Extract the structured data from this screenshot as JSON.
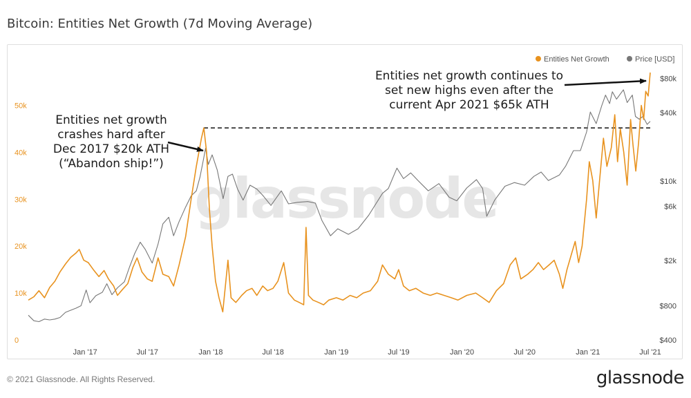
{
  "page": {
    "title": "Bitcoin: Entities Net Growth (7d Moving Average)",
    "copyright": "© 2021 Glassnode. All Rights Reserved.",
    "logo": "glassnode",
    "watermark": "glassnode"
  },
  "chart_data": {
    "type": "line",
    "title": "Bitcoin: Entities Net Growth (7d Moving Average)",
    "x_range": [
      "2016-07-20",
      "2021-07-05"
    ],
    "x_ticks": [
      {
        "date": "2017-01-01",
        "label": "Jan '17"
      },
      {
        "date": "2017-07-01",
        "label": "Jul '17"
      },
      {
        "date": "2018-01-01",
        "label": "Jan '18"
      },
      {
        "date": "2018-07-01",
        "label": "Jul '18"
      },
      {
        "date": "2019-01-01",
        "label": "Jan '19"
      },
      {
        "date": "2019-07-01",
        "label": "Jul '19"
      },
      {
        "date": "2020-01-01",
        "label": "Jan '20"
      },
      {
        "date": "2020-07-01",
        "label": "Jul '20"
      },
      {
        "date": "2021-01-01",
        "label": "Jan '21"
      },
      {
        "date": "2021-07-01",
        "label": "Jul '21"
      }
    ],
    "y_left": {
      "ylim": [
        0,
        57000
      ],
      "ticks": [
        0,
        10000,
        20000,
        30000,
        40000,
        50000
      ],
      "tick_labels": [
        "0",
        "10k",
        "20k",
        "30k",
        "40k",
        "50k"
      ],
      "color": "#e8921e"
    },
    "y_right": {
      "scale": "log",
      "ylim": [
        400,
        90000
      ],
      "ticks": [
        400,
        800,
        2000,
        6000,
        10000,
        40000,
        80000
      ],
      "tick_labels": [
        "$400",
        "$800",
        "$2k",
        "$6k",
        "$10k",
        "$40k",
        "$80k"
      ]
    },
    "legend": {
      "placement": "top-right"
    },
    "grid": false,
    "series": [
      {
        "name": "Entities Net Growth",
        "axis": "left",
        "color": "#e8921e",
        "points": [
          [
            "2016-07-20",
            8500
          ],
          [
            "2016-08-05",
            9200
          ],
          [
            "2016-08-20",
            10500
          ],
          [
            "2016-09-05",
            9000
          ],
          [
            "2016-09-20",
            11200
          ],
          [
            "2016-10-05",
            12500
          ],
          [
            "2016-10-20",
            14500
          ],
          [
            "2016-11-05",
            16200
          ],
          [
            "2016-11-20",
            17600
          ],
          [
            "2016-12-05",
            18500
          ],
          [
            "2016-12-15",
            19300
          ],
          [
            "2016-12-28",
            17000
          ],
          [
            "2017-01-10",
            16500
          ],
          [
            "2017-01-25",
            15000
          ],
          [
            "2017-02-10",
            13500
          ],
          [
            "2017-02-25",
            14800
          ],
          [
            "2017-03-10",
            13000
          ],
          [
            "2017-03-25",
            11500
          ],
          [
            "2017-04-05",
            9500
          ],
          [
            "2017-04-20",
            10800
          ],
          [
            "2017-05-05",
            12000
          ],
          [
            "2017-05-20",
            15500
          ],
          [
            "2017-06-01",
            17500
          ],
          [
            "2017-06-15",
            14500
          ],
          [
            "2017-07-01",
            13000
          ],
          [
            "2017-07-15",
            12500
          ],
          [
            "2017-08-01",
            17500
          ],
          [
            "2017-08-15",
            14000
          ],
          [
            "2017-09-01",
            13500
          ],
          [
            "2017-09-15",
            11500
          ],
          [
            "2017-10-01",
            16000
          ],
          [
            "2017-10-20",
            22000
          ],
          [
            "2017-11-05",
            30000
          ],
          [
            "2017-11-20",
            37000
          ],
          [
            "2017-12-05",
            43000
          ],
          [
            "2017-12-12",
            45200
          ],
          [
            "2017-12-20",
            40000
          ],
          [
            "2017-12-28",
            28000
          ],
          [
            "2018-01-05",
            20000
          ],
          [
            "2018-01-15",
            12500
          ],
          [
            "2018-01-25",
            9000
          ],
          [
            "2018-02-05",
            6000
          ],
          [
            "2018-02-20",
            17000
          ],
          [
            "2018-03-01",
            9000
          ],
          [
            "2018-03-15",
            8000
          ],
          [
            "2018-04-01",
            9500
          ],
          [
            "2018-04-15",
            10500
          ],
          [
            "2018-05-01",
            11000
          ],
          [
            "2018-05-15",
            9500
          ],
          [
            "2018-06-01",
            11500
          ],
          [
            "2018-06-15",
            10500
          ],
          [
            "2018-07-01",
            11000
          ],
          [
            "2018-07-15",
            12500
          ],
          [
            "2018-08-01",
            16500
          ],
          [
            "2018-08-15",
            10000
          ],
          [
            "2018-09-01",
            8500
          ],
          [
            "2018-09-15",
            8000
          ],
          [
            "2018-09-28",
            7500
          ],
          [
            "2018-10-05",
            24000
          ],
          [
            "2018-10-12",
            9500
          ],
          [
            "2018-10-25",
            8500
          ],
          [
            "2018-11-10",
            8000
          ],
          [
            "2018-11-25",
            7500
          ],
          [
            "2018-12-10",
            8500
          ],
          [
            "2019-01-01",
            9000
          ],
          [
            "2019-01-20",
            8500
          ],
          [
            "2019-02-10",
            9500
          ],
          [
            "2019-03-01",
            9000
          ],
          [
            "2019-03-20",
            10000
          ],
          [
            "2019-04-10",
            10500
          ],
          [
            "2019-05-01",
            12500
          ],
          [
            "2019-05-15",
            16000
          ],
          [
            "2019-06-01",
            14000
          ],
          [
            "2019-06-20",
            13000
          ],
          [
            "2019-07-01",
            15000
          ],
          [
            "2019-07-15",
            11500
          ],
          [
            "2019-08-01",
            10500
          ],
          [
            "2019-08-20",
            11000
          ],
          [
            "2019-09-10",
            10000
          ],
          [
            "2019-10-01",
            9500
          ],
          [
            "2019-10-20",
            10000
          ],
          [
            "2019-11-10",
            9500
          ],
          [
            "2019-12-01",
            9000
          ],
          [
            "2019-12-20",
            8500
          ],
          [
            "2020-01-15",
            9500
          ],
          [
            "2020-02-10",
            10000
          ],
          [
            "2020-03-01",
            9000
          ],
          [
            "2020-03-20",
            8000
          ],
          [
            "2020-04-10",
            10500
          ],
          [
            "2020-05-01",
            12000
          ],
          [
            "2020-05-20",
            16000
          ],
          [
            "2020-06-05",
            17500
          ],
          [
            "2020-06-20",
            13000
          ],
          [
            "2020-07-10",
            14000
          ],
          [
            "2020-07-25",
            15000
          ],
          [
            "2020-08-10",
            16500
          ],
          [
            "2020-08-25",
            15000
          ],
          [
            "2020-09-10",
            16000
          ],
          [
            "2020-09-25",
            17000
          ],
          [
            "2020-10-10",
            14000
          ],
          [
            "2020-10-20",
            11000
          ],
          [
            "2020-11-01",
            15000
          ],
          [
            "2020-11-15",
            18500
          ],
          [
            "2020-11-25",
            21000
          ],
          [
            "2020-12-05",
            16500
          ],
          [
            "2020-12-15",
            20000
          ],
          [
            "2020-12-28",
            30000
          ],
          [
            "2021-01-05",
            38000
          ],
          [
            "2021-01-15",
            34000
          ],
          [
            "2021-01-25",
            26000
          ],
          [
            "2021-02-05",
            35000
          ],
          [
            "2021-02-15",
            43000
          ],
          [
            "2021-02-25",
            37000
          ],
          [
            "2021-03-10",
            41000
          ],
          [
            "2021-03-20",
            48000
          ],
          [
            "2021-03-28",
            38000
          ],
          [
            "2021-04-05",
            45000
          ],
          [
            "2021-04-15",
            40000
          ],
          [
            "2021-04-25",
            33000
          ],
          [
            "2021-05-05",
            47000
          ],
          [
            "2021-05-12",
            41500
          ],
          [
            "2021-05-20",
            36000
          ],
          [
            "2021-05-28",
            42000
          ],
          [
            "2021-06-05",
            50000
          ],
          [
            "2021-06-12",
            47000
          ],
          [
            "2021-06-18",
            53000
          ],
          [
            "2021-06-25",
            52000
          ],
          [
            "2021-07-01",
            57000
          ]
        ]
      },
      {
        "name": "Price [USD]",
        "axis": "right",
        "color": "#777777",
        "points": [
          [
            "2016-07-20",
            660
          ],
          [
            "2016-08-05",
            590
          ],
          [
            "2016-08-20",
            580
          ],
          [
            "2016-09-05",
            610
          ],
          [
            "2016-09-20",
            600
          ],
          [
            "2016-10-05",
            610
          ],
          [
            "2016-10-20",
            630
          ],
          [
            "2016-11-05",
            700
          ],
          [
            "2016-11-20",
            730
          ],
          [
            "2016-12-05",
            760
          ],
          [
            "2016-12-20",
            800
          ],
          [
            "2017-01-04",
            1100
          ],
          [
            "2017-01-15",
            850
          ],
          [
            "2017-02-01",
            980
          ],
          [
            "2017-02-20",
            1050
          ],
          [
            "2017-03-05",
            1250
          ],
          [
            "2017-03-20",
            1000
          ],
          [
            "2017-04-05",
            1150
          ],
          [
            "2017-04-25",
            1300
          ],
          [
            "2017-05-10",
            1750
          ],
          [
            "2017-05-25",
            2300
          ],
          [
            "2017-06-10",
            2900
          ],
          [
            "2017-06-25",
            2500
          ],
          [
            "2017-07-15",
            1900
          ],
          [
            "2017-08-01",
            2800
          ],
          [
            "2017-08-15",
            4200
          ],
          [
            "2017-09-01",
            4800
          ],
          [
            "2017-09-15",
            3300
          ],
          [
            "2017-10-01",
            4400
          ],
          [
            "2017-10-20",
            5900
          ],
          [
            "2017-11-05",
            7400
          ],
          [
            "2017-11-20",
            8200
          ],
          [
            "2017-12-01",
            10900
          ],
          [
            "2017-12-10",
            15000
          ],
          [
            "2017-12-17",
            19400
          ],
          [
            "2017-12-25",
            14000
          ],
          [
            "2018-01-05",
            17000
          ],
          [
            "2018-01-20",
            12500
          ],
          [
            "2018-02-06",
            7000
          ],
          [
            "2018-02-20",
            11000
          ],
          [
            "2018-03-05",
            11500
          ],
          [
            "2018-03-20",
            8500
          ],
          [
            "2018-04-05",
            6800
          ],
          [
            "2018-04-25",
            9200
          ],
          [
            "2018-05-15",
            8500
          ],
          [
            "2018-06-01",
            7500
          ],
          [
            "2018-06-25",
            6100
          ],
          [
            "2018-07-25",
            8200
          ],
          [
            "2018-08-15",
            6300
          ],
          [
            "2018-09-10",
            6500
          ],
          [
            "2018-10-10",
            6600
          ],
          [
            "2018-11-01",
            6400
          ],
          [
            "2018-11-20",
            4500
          ],
          [
            "2018-12-15",
            3300
          ],
          [
            "2019-01-05",
            3800
          ],
          [
            "2019-02-05",
            3400
          ],
          [
            "2019-03-05",
            3800
          ],
          [
            "2019-04-05",
            5000
          ],
          [
            "2019-05-15",
            7800
          ],
          [
            "2019-06-01",
            8600
          ],
          [
            "2019-06-26",
            13000
          ],
          [
            "2019-07-15",
            10500
          ],
          [
            "2019-08-05",
            11800
          ],
          [
            "2019-08-25",
            10200
          ],
          [
            "2019-09-25",
            8200
          ],
          [
            "2019-10-26",
            9500
          ],
          [
            "2019-11-25",
            7200
          ],
          [
            "2019-12-17",
            6700
          ],
          [
            "2020-01-15",
            8700
          ],
          [
            "2020-02-12",
            10300
          ],
          [
            "2020-03-01",
            8600
          ],
          [
            "2020-03-13",
            4900
          ],
          [
            "2020-04-05",
            6800
          ],
          [
            "2020-05-05",
            9000
          ],
          [
            "2020-06-01",
            9700
          ],
          [
            "2020-07-01",
            9200
          ],
          [
            "2020-07-28",
            11000
          ],
          [
            "2020-08-18",
            12000
          ],
          [
            "2020-09-08",
            10100
          ],
          [
            "2020-10-10",
            11300
          ],
          [
            "2020-10-28",
            13500
          ],
          [
            "2020-11-20",
            18500
          ],
          [
            "2020-12-10",
            18500
          ],
          [
            "2020-12-28",
            27000
          ],
          [
            "2021-01-08",
            40500
          ],
          [
            "2021-01-25",
            32000
          ],
          [
            "2021-02-10",
            46000
          ],
          [
            "2021-02-21",
            57000
          ],
          [
            "2021-03-05",
            48000
          ],
          [
            "2021-03-13",
            61000
          ],
          [
            "2021-03-25",
            52500
          ],
          [
            "2021-04-14",
            63500
          ],
          [
            "2021-04-25",
            49000
          ],
          [
            "2021-05-10",
            57000
          ],
          [
            "2021-05-19",
            37000
          ],
          [
            "2021-05-30",
            35000
          ],
          [
            "2021-06-10",
            37000
          ],
          [
            "2021-06-22",
            31500
          ],
          [
            "2021-07-01",
            33500
          ]
        ]
      }
    ],
    "annotations": [
      {
        "lines": [
          "Entities net growth",
          "crashes hard after",
          "Dec 2017 $20k ATH",
          "(“Abandon ship!”)"
        ]
      },
      {
        "lines": [
          "Entities net growth continues to",
          "set new highs even after the",
          "current Apr 2021 $65k ATH"
        ]
      }
    ],
    "reference_line": {
      "y": 45200,
      "from": "2017-12-12",
      "to": "2021-07-05",
      "style": "dashed"
    }
  }
}
